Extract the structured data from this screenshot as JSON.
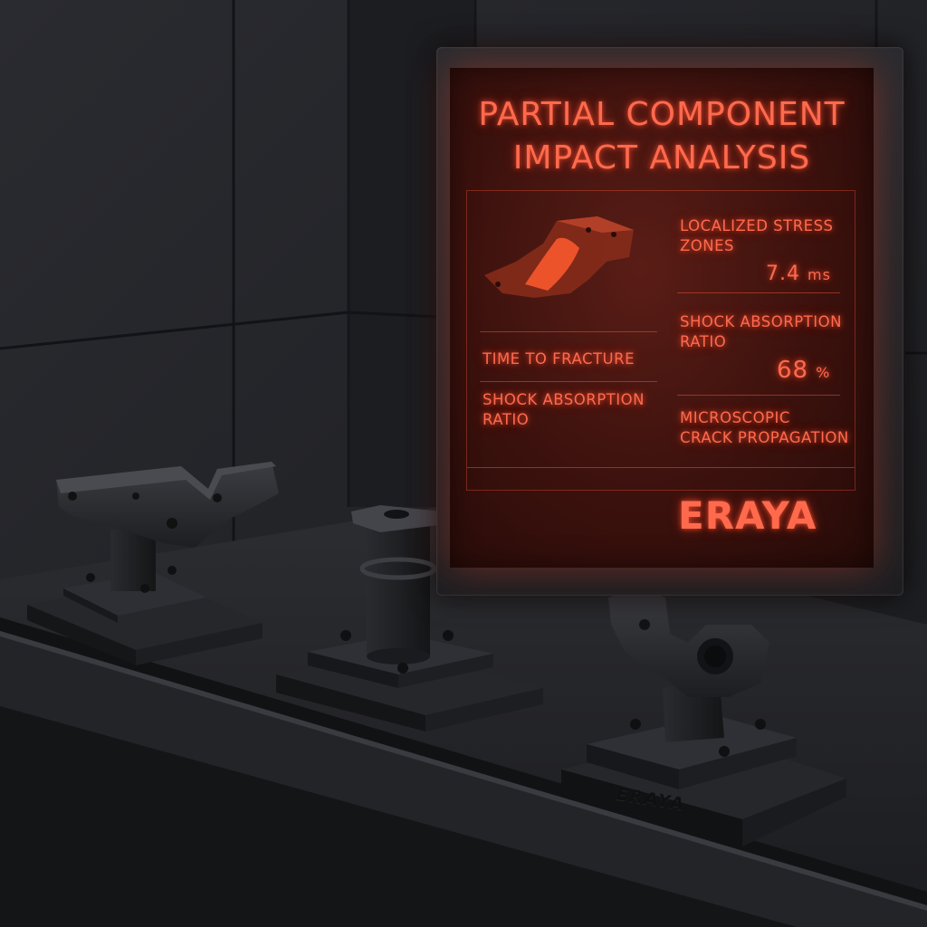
{
  "screen": {
    "title": "PARTIAL COMPONENT\nIMPACT ANALYSIS",
    "stats": {
      "localized_stress_zones": {
        "label": "LOCALIZED STRESS\nZONES",
        "value": "7.4",
        "unit": "ms"
      },
      "time_to_fracture": {
        "label": "TIME TO FRACTURE"
      },
      "shock_absorption_ratio_right": {
        "label": "SHOCK ABSORPTION\nRATIO",
        "value": "68",
        "unit": "%"
      },
      "shock_absorption_ratio_left": {
        "label": "SHOCK ABSORPTION\nRATIO"
      },
      "microscopic_crack_propagation": {
        "label": "MICROSCOPIC\nCRACK PROPAGATION"
      }
    },
    "brand": "ERAYA"
  },
  "fixture": {
    "brand": "ERAYA"
  },
  "colors": {
    "screen_glow": "#ff6a4d",
    "screen_bg": "#3b110d",
    "metal": "#2b2c30",
    "wall": "#1e1f23"
  }
}
